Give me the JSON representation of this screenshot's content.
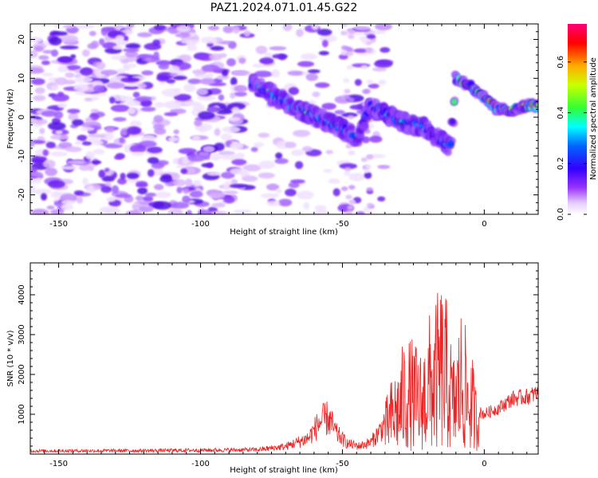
{
  "title": "PAZ1.2024.071.01.45.G22",
  "chart_data": [
    {
      "type": "heatmap",
      "xlabel": "Height of straight line (km)",
      "ylabel": "Frequency (Hz)",
      "xlim": [
        -160,
        19
      ],
      "ylim": [
        -25,
        24
      ],
      "xticks": [
        -150,
        -100,
        -50,
        0
      ],
      "yticks": [
        -20,
        -10,
        0,
        10,
        20
      ],
      "colorbar": {
        "label": "Normalized spectral amplitude",
        "range": [
          0,
          0.75
        ],
        "ticks": [
          "0.0",
          "0.2",
          "0.4",
          "0.6"
        ],
        "colors": [
          "#ffffff",
          "#cc99ff",
          "#6600cc",
          "#0000ff",
          "#00ffff",
          "#66ff33",
          "#ffff00",
          "#ff6600",
          "#ff0000",
          "#ff0066"
        ]
      },
      "ridge": {
        "x": [
          -82,
          -75,
          -68,
          -62,
          -56,
          -50,
          -45,
          -40,
          -35,
          -30,
          -25,
          -20,
          -15,
          -12,
          -10,
          -5,
          0,
          5,
          10,
          15,
          19
        ],
        "y": [
          9,
          6,
          3,
          1,
          -1,
          -3,
          -5,
          3,
          1,
          -1,
          -2,
          -3,
          -6,
          -8,
          10,
          8,
          5,
          2,
          2,
          3,
          3
        ]
      }
    },
    {
      "type": "line",
      "xlabel": "Height of straight line (km)",
      "ylabel": "SNR (10 * v/v)",
      "xlim": [
        -160,
        19
      ],
      "ylim": [
        0,
        4800
      ],
      "xticks": [
        -150,
        -100,
        -50,
        0
      ],
      "yticks": [
        1000,
        2000,
        3000,
        4000
      ],
      "color": "#ee2222",
      "envelope": {
        "x": [
          -160,
          -120,
          -80,
          -70,
          -62,
          -58,
          -55,
          -52,
          -48,
          -44,
          -40,
          -36,
          -33,
          -30,
          -28,
          -25,
          -22,
          -20,
          -17,
          -15,
          -13,
          -11,
          -9,
          -8,
          -6,
          -4,
          -2,
          0,
          5,
          10,
          15,
          19
        ],
        "y": [
          110,
          120,
          150,
          260,
          550,
          1100,
          1250,
          700,
          350,
          280,
          400,
          900,
          1700,
          2200,
          2800,
          2700,
          2400,
          3200,
          3700,
          4100,
          3600,
          2300,
          3100,
          3600,
          2700,
          2200,
          1100,
          1050,
          1200,
          1450,
          1500,
          1600
        ]
      }
    }
  ]
}
